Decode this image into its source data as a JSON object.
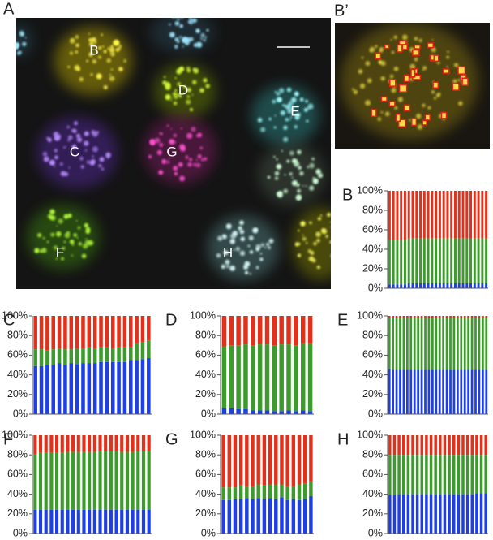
{
  "panels": {
    "A": {
      "label": "A",
      "cell_labels": [
        "B",
        "D",
        "E",
        "C",
        "G",
        "F",
        "H"
      ]
    },
    "B_prime": {
      "label": "B’"
    }
  },
  "chart_data": [
    {
      "type": "stacked-bar",
      "label": "B",
      "ylim": [
        0,
        100
      ],
      "yticks": [
        {
          "value": 0,
          "label": "0%"
        },
        {
          "value": 20,
          "label": "20%"
        },
        {
          "value": 40,
          "label": "40%"
        },
        {
          "value": 60,
          "label": "60%"
        },
        {
          "value": 80,
          "label": "80%"
        },
        {
          "value": 100,
          "label": "100%"
        }
      ],
      "series": [
        {
          "color": "#1f3fe6",
          "values": [
            4,
            4,
            4,
            4,
            4,
            5,
            5,
            5,
            5,
            5,
            5,
            5,
            5,
            5,
            5,
            5,
            5,
            5,
            5,
            5,
            5,
            5,
            5,
            5,
            5,
            5
          ]
        },
        {
          "color": "#3d9b2d",
          "values": [
            46,
            46,
            46,
            46,
            46,
            46,
            46,
            46,
            46,
            46,
            46,
            46,
            46,
            46,
            46,
            46,
            46,
            46,
            46,
            46,
            46,
            46,
            46,
            46,
            46,
            46
          ]
        },
        {
          "color": "#e3301a",
          "values": [
            50,
            50,
            50,
            50,
            50,
            49,
            49,
            49,
            49,
            49,
            49,
            49,
            49,
            49,
            49,
            49,
            49,
            49,
            49,
            49,
            49,
            49,
            49,
            49,
            49,
            49
          ]
        }
      ]
    },
    {
      "type": "stacked-bar",
      "label": "C",
      "ylim": [
        0,
        100
      ],
      "yticks": [
        {
          "value": 0,
          "label": "0%"
        },
        {
          "value": 20,
          "label": "20%"
        },
        {
          "value": 40,
          "label": "40%"
        },
        {
          "value": 60,
          "label": "60%"
        },
        {
          "value": 80,
          "label": "80%"
        },
        {
          "value": 100,
          "label": "100%"
        }
      ],
      "series": [
        {
          "color": "#1f3fe6",
          "values": [
            49,
            49,
            50,
            50,
            52,
            50,
            52,
            51,
            52,
            52,
            52,
            53,
            53,
            53,
            53,
            53,
            55,
            55,
            56,
            57
          ]
        },
        {
          "color": "#3d9b2d",
          "values": [
            17,
            17,
            15,
            16,
            15,
            16,
            14,
            16,
            15,
            16,
            15,
            15,
            15,
            14,
            15,
            15,
            13,
            17,
            17,
            18
          ]
        },
        {
          "color": "#e3301a",
          "values": [
            34,
            34,
            35,
            34,
            33,
            34,
            34,
            33,
            33,
            32,
            33,
            32,
            32,
            33,
            32,
            32,
            32,
            28,
            27,
            25
          ]
        }
      ]
    },
    {
      "type": "stacked-bar",
      "label": "D",
      "ylim": [
        0,
        100
      ],
      "yticks": [
        {
          "value": 0,
          "label": "0%"
        },
        {
          "value": 20,
          "label": "20%"
        },
        {
          "value": 40,
          "label": "40%"
        },
        {
          "value": 60,
          "label": "60%"
        },
        {
          "value": 80,
          "label": "80%"
        },
        {
          "value": 100,
          "label": "100%"
        }
      ],
      "series": [
        {
          "color": "#1f3fe6",
          "values": [
            6,
            6,
            5,
            5,
            4,
            4,
            4,
            3,
            3,
            4,
            3,
            4,
            3
          ]
        },
        {
          "color": "#3d9b2d",
          "values": [
            63,
            64,
            65,
            66,
            66,
            67,
            67,
            67,
            68,
            67,
            67,
            68,
            69
          ]
        },
        {
          "color": "#e3301a",
          "values": [
            31,
            30,
            30,
            29,
            30,
            29,
            29,
            30,
            29,
            29,
            30,
            28,
            28
          ]
        }
      ]
    },
    {
      "type": "stacked-bar",
      "label": "E",
      "ylim": [
        0,
        100
      ],
      "yticks": [
        {
          "value": 0,
          "label": "0%"
        },
        {
          "value": 20,
          "label": "20%"
        },
        {
          "value": 40,
          "label": "40%"
        },
        {
          "value": 60,
          "label": "60%"
        },
        {
          "value": 80,
          "label": "80%"
        },
        {
          "value": 100,
          "label": "100%"
        }
      ],
      "series": [
        {
          "color": "#1f3fe6",
          "values": [
            46,
            45,
            45,
            45,
            45,
            45,
            45,
            45,
            45,
            45,
            45,
            45,
            45,
            45,
            45,
            45,
            45,
            45,
            45,
            45,
            45,
            45,
            45,
            45,
            45,
            45,
            45,
            45
          ]
        },
        {
          "color": "#3d9b2d",
          "values": [
            52,
            53,
            53,
            53,
            53,
            53,
            53,
            53,
            53,
            53,
            53,
            53,
            53,
            53,
            53,
            53,
            53,
            53,
            53,
            53,
            53,
            53,
            53,
            53,
            53,
            53,
            53,
            53
          ]
        },
        {
          "color": "#e3301a",
          "values": [
            2,
            2,
            2,
            2,
            2,
            2,
            2,
            2,
            2,
            2,
            2,
            2,
            2,
            2,
            2,
            2,
            2,
            2,
            2,
            2,
            2,
            2,
            2,
            2,
            2,
            2,
            2,
            2
          ]
        }
      ]
    },
    {
      "type": "stacked-bar",
      "label": "F",
      "ylim": [
        0,
        100
      ],
      "yticks": [
        {
          "value": 0,
          "label": "0%"
        },
        {
          "value": 20,
          "label": "20%"
        },
        {
          "value": 40,
          "label": "40%"
        },
        {
          "value": 60,
          "label": "60%"
        },
        {
          "value": 80,
          "label": "80%"
        },
        {
          "value": 100,
          "label": "100%"
        }
      ],
      "series": [
        {
          "color": "#1f3fe6",
          "values": [
            24,
            24,
            24,
            24,
            24,
            24,
            24,
            24,
            24,
            24,
            24,
            24,
            24,
            24,
            24,
            24,
            24,
            24,
            24,
            24,
            24,
            24
          ]
        },
        {
          "color": "#3d9b2d",
          "values": [
            57,
            58,
            58,
            58,
            58,
            58,
            59,
            59,
            59,
            59,
            59,
            59,
            60,
            60,
            60,
            60,
            59,
            59,
            59,
            60,
            60,
            60
          ]
        },
        {
          "color": "#e3301a",
          "values": [
            19,
            18,
            18,
            18,
            18,
            18,
            17,
            17,
            17,
            17,
            17,
            17,
            16,
            16,
            16,
            16,
            17,
            17,
            17,
            16,
            16,
            16
          ]
        }
      ]
    },
    {
      "type": "stacked-bar",
      "label": "G",
      "ylim": [
        0,
        100
      ],
      "yticks": [
        {
          "value": 0,
          "label": "0%"
        },
        {
          "value": 20,
          "label": "20%"
        },
        {
          "value": 40,
          "label": "40%"
        },
        {
          "value": 60,
          "label": "60%"
        },
        {
          "value": 80,
          "label": "80%"
        },
        {
          "value": 100,
          "label": "100%"
        }
      ],
      "series": [
        {
          "color": "#1f3fe6",
          "values": [
            34,
            34,
            35,
            35,
            36,
            35,
            36,
            35,
            36,
            35,
            37,
            34,
            35,
            34,
            35,
            38
          ]
        },
        {
          "color": "#3d9b2d",
          "values": [
            13,
            13,
            12,
            14,
            12,
            13,
            14,
            14,
            14,
            15,
            13,
            14,
            13,
            16,
            16,
            15
          ]
        },
        {
          "color": "#e3301a",
          "values": [
            53,
            53,
            53,
            51,
            52,
            52,
            50,
            51,
            50,
            50,
            50,
            52,
            52,
            50,
            49,
            47
          ]
        }
      ]
    },
    {
      "type": "stacked-bar",
      "label": "H",
      "ylim": [
        0,
        100
      ],
      "yticks": [
        {
          "value": 0,
          "label": "0%"
        },
        {
          "value": 20,
          "label": "20%"
        },
        {
          "value": 40,
          "label": "40%"
        },
        {
          "value": 60,
          "label": "60%"
        },
        {
          "value": 80,
          "label": "80%"
        },
        {
          "value": 100,
          "label": "100%"
        }
      ],
      "series": [
        {
          "color": "#1f3fe6",
          "values": [
            39,
            39,
            40,
            40,
            40,
            40,
            40,
            40,
            40,
            40,
            40,
            40,
            40,
            40,
            40,
            40,
            40,
            40,
            40,
            41,
            41,
            41
          ]
        },
        {
          "color": "#3d9b2d",
          "values": [
            41,
            41,
            40,
            40,
            40,
            40,
            40,
            40,
            40,
            40,
            40,
            40,
            40,
            40,
            40,
            40,
            40,
            40,
            40,
            39,
            39,
            39
          ]
        },
        {
          "color": "#e3301a",
          "values": [
            20,
            20,
            20,
            20,
            20,
            20,
            20,
            20,
            20,
            20,
            20,
            20,
            20,
            20,
            20,
            20,
            20,
            20,
            20,
            20,
            20,
            20
          ]
        }
      ]
    }
  ]
}
